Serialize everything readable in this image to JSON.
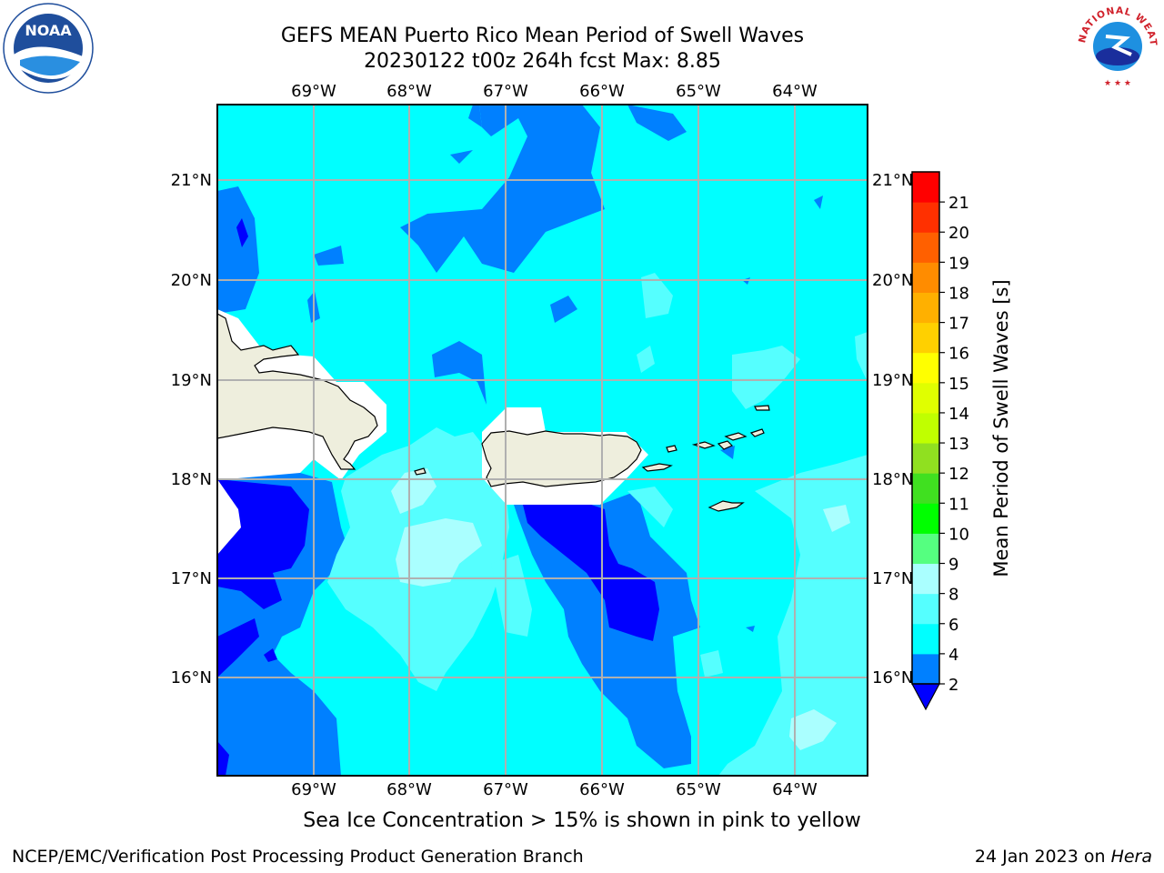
{
  "header": {
    "title_line1": "GEFS MEAN Puerto Rico Mean Period of Swell Waves",
    "title_line2": "20230122 t00z 264h fcst   Max: 8.85"
  },
  "logos": {
    "left": "NOAA",
    "right": "NATIONAL WEATHER SERVICE"
  },
  "map": {
    "lon_ticks": [
      "69°W",
      "68°W",
      "67°W",
      "66°W",
      "65°W",
      "64°W"
    ],
    "lat_ticks": [
      "21°N",
      "20°N",
      "19°N",
      "18°N",
      "17°N",
      "16°N"
    ],
    "colors": {
      "ocean_main": "#00ffff",
      "band_2_4": "#0080ff",
      "band_below_2": "#0000ff",
      "band_6_8": "#55ffff",
      "band_8_9": "#aaffff",
      "land": "#eeeedd",
      "masked": "#ffffff",
      "grid": "#b0b0b0"
    }
  },
  "colorbar": {
    "label": "Mean Period of Swell Waves [s]",
    "ticks": [
      "2",
      "4",
      "6",
      "8",
      "9",
      "10",
      "11",
      "12",
      "13",
      "14",
      "15",
      "16",
      "17",
      "18",
      "19",
      "20",
      "21"
    ],
    "colors": [
      "#0080ff",
      "#00ffff",
      "#55ffff",
      "#aaffff",
      "#55ff80",
      "#00ff00",
      "#40e020",
      "#90e020",
      "#c0ff00",
      "#e0ff00",
      "#ffff00",
      "#ffd000",
      "#ffb000",
      "#ff8c00",
      "#ff6000",
      "#ff3000",
      "#ff0000"
    ],
    "under_color": "#0000ff"
  },
  "caption": "Sea Ice Concentration > 15% is shown in pink to yellow",
  "footer": {
    "left": "NCEP/EMC/Verification Post Processing Product Generation Branch",
    "right_date": "24 Jan 2023 on ",
    "right_host": "Hera"
  }
}
